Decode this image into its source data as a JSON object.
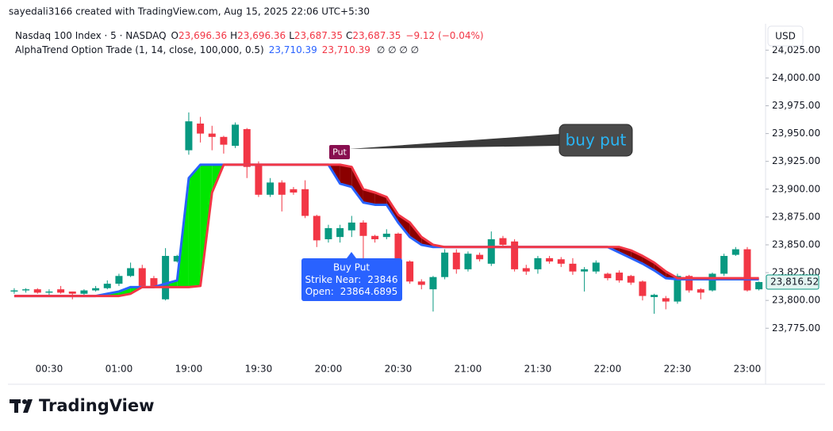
{
  "header": "sayedali3166 created with TradingView.com, Aug 15, 2025 22:06 UTC+5:30",
  "brand": "TradingView",
  "currency": "USD",
  "legend": {
    "symbol": "Nasdaq 100 Index · 5 · NASDAQ",
    "ohlc": [
      {
        "key": "O",
        "value": {
          "value": 23696.36,
          "label": "23,696.36"
        }
      },
      {
        "key": "H",
        "value": {
          "value": 23696.36,
          "label": "23,696.36"
        }
      },
      {
        "key": "L",
        "value": {
          "value": 23687.35,
          "label": "23,687.35"
        }
      },
      {
        "key": "C",
        "value": {
          "value": 23687.35,
          "label": "23,687.35"
        }
      }
    ],
    "change": {
      "value": -9.12,
      "label": "−9.12 (−0.04%)"
    },
    "indicator": "AlphaTrend Option Trade (1, 14, close, 100,000, 0.5)",
    "indicator_values": [
      {
        "value": 23710.39,
        "label": "23,710.39",
        "color": "#2962ff"
      },
      {
        "value": 23710.39,
        "label": "23,710.39",
        "color": "#f23645"
      }
    ],
    "indicator_empty": "∅ ∅ ∅ ∅"
  },
  "annotations": {
    "put_marker": "Put",
    "callout": "buy put",
    "signal": {
      "title": "Buy Put",
      "strike": {
        "label": "Strike Near:",
        "value": 23846
      },
      "open": {
        "label": "Open:",
        "value": 23864.6895
      }
    }
  },
  "chart_data": {
    "type": "candlestick",
    "categories": [
      null,
      null,
      null,
      "00:30",
      null,
      null,
      null,
      null,
      null,
      "01:00",
      null,
      null,
      null,
      null,
      null,
      "19:00",
      null,
      null,
      null,
      null,
      null,
      "19:30",
      null,
      null,
      null,
      null,
      null,
      "20:00",
      null,
      null,
      null,
      null,
      null,
      "20:30",
      null,
      null,
      null,
      null,
      null,
      "21:00",
      null,
      null,
      null,
      null,
      null,
      "21:30",
      null,
      null,
      null,
      null,
      null,
      "22:00",
      null,
      null,
      null,
      null,
      null,
      "22:30",
      null,
      null,
      null,
      null,
      null,
      "23:00",
      null
    ],
    "open": [
      23808,
      23809,
      23810,
      23807,
      23810,
      23808,
      23806,
      23809,
      23811,
      23815,
      23822,
      23829,
      23820,
      23801,
      23835,
      23935,
      23959,
      23950,
      23947,
      23939,
      23954,
      23922,
      23895,
      23906,
      23900,
      23900,
      23876,
      23855,
      23857,
      23863,
      23870,
      23858,
      23857,
      23860,
      23835,
      23817,
      23810,
      23821,
      23843,
      23828,
      23841,
      23833,
      23856,
      23853,
      23829,
      23828,
      23838,
      23837,
      23833,
      23826,
      23826,
      23824,
      23825,
      23822,
      23817,
      23803,
      23802,
      23799,
      23822,
      23810,
      23809,
      23824,
      23841,
      23846,
      23810
    ],
    "high": [
      23811,
      23811,
      23811,
      23810,
      23813,
      23808,
      23810,
      23813,
      23818,
      23824,
      23834,
      23832,
      23822,
      23847,
      23841,
      23969,
      23965,
      23957,
      23948,
      23960,
      23955,
      23925,
      23910,
      23908,
      23902,
      23908,
      23877,
      23868,
      23868,
      23876,
      23872,
      23859,
      23864,
      23861,
      23836,
      23819,
      23822,
      23846,
      23846,
      23844,
      23843,
      23862,
      23858,
      23855,
      23832,
      23840,
      23840,
      23839,
      23838,
      23830,
      23836,
      23825,
      23827,
      23823,
      23818,
      23806,
      23804,
      23824,
      23823,
      23811,
      23825,
      23842,
      23848,
      23848,
      23817
    ],
    "low": [
      23806,
      23807,
      23806,
      23805,
      23806,
      23801,
      23805,
      23808,
      23810,
      23813,
      23821,
      23812,
      23811,
      23800,
      23834,
      23931,
      23942,
      23935,
      23932,
      23937,
      23910,
      23893,
      23893,
      23880,
      23895,
      23874,
      23848,
      23852,
      23852,
      23857,
      23830,
      23852,
      23855,
      23833,
      23815,
      23810,
      23790,
      23819,
      23824,
      23826,
      23835,
      23831,
      23849,
      23826,
      23823,
      23824,
      23833,
      23830,
      23823,
      23808,
      23824,
      23818,
      23816,
      23814,
      23800,
      23788,
      23792,
      23797,
      23807,
      23801,
      23808,
      23822,
      23840,
      23808,
      23809
    ],
    "close": [
      23809,
      23810,
      23807,
      23808,
      23807,
      23806,
      23809,
      23811,
      23815,
      23822,
      23829,
      23813,
      23813,
      23840,
      23840,
      23961,
      23950,
      23947,
      23940,
      23958,
      23920,
      23895,
      23906,
      23895,
      23897,
      23876,
      23854,
      23865,
      23865,
      23870,
      23858,
      23855,
      23860,
      23835,
      23817,
      23814,
      23821,
      23843,
      23828,
      23842,
      23837,
      23855,
      23850,
      23828,
      23826,
      23838,
      23835,
      23833,
      23826,
      23828,
      23834,
      23820,
      23818,
      23816,
      23804,
      23805,
      23799,
      23822,
      23809,
      23807,
      23824,
      23840,
      23846,
      23809,
      23816.52
    ],
    "up_color": "#089981",
    "down_color": "#f23645",
    "series": [
      {
        "color": "#2962ff",
        "values": [
          23804,
          23804,
          23804,
          23804,
          23804,
          23804,
          23804,
          23804,
          23806,
          23808,
          23812,
          23812,
          23812,
          23815,
          23818,
          23910,
          23922,
          23922,
          23922,
          23922,
          23922,
          23922,
          23922,
          23922,
          23922,
          23922,
          23922,
          23922,
          23905,
          23902,
          23888,
          23886,
          23886,
          23870,
          23857,
          23850,
          23848,
          23848,
          23848,
          23848,
          23848,
          23848,
          23848,
          23848,
          23848,
          23848,
          23848,
          23848,
          23848,
          23848,
          23848,
          23848,
          23843,
          23838,
          23833,
          23827,
          23820,
          23819,
          23819,
          23819,
          23819,
          23819,
          23819,
          23819,
          23819
        ]
      },
      {
        "color": "#f23645",
        "values": [
          23804,
          23804,
          23804,
          23804,
          23804,
          23804,
          23804,
          23804,
          23804,
          23804,
          23806,
          23812,
          23812,
          23812,
          23812,
          23812,
          23813,
          23897,
          23922,
          23922,
          23922,
          23922,
          23922,
          23922,
          23922,
          23922,
          23922,
          23922,
          23922,
          23920,
          23900,
          23897,
          23893,
          23877,
          23870,
          23857,
          23850,
          23848,
          23848,
          23848,
          23848,
          23848,
          23848,
          23848,
          23848,
          23848,
          23848,
          23848,
          23848,
          23848,
          23848,
          23848,
          23848,
          23845,
          23840,
          23834,
          23826,
          23820,
          23820,
          23820,
          23820,
          23820,
          23820,
          23820,
          23820
        ]
      }
    ],
    "fill_up": "#00e600",
    "fill_down": "#8b0000",
    "last_price": {
      "value": 23816.52,
      "label": "23,816.52"
    },
    "ylim": [
      23746,
      24048
    ],
    "yticks": [
      {
        "value": 23775,
        "label": "23,775.00"
      },
      {
        "value": 23800,
        "label": "23,800.00"
      },
      {
        "value": 23825,
        "label": "23,825.00"
      },
      {
        "value": 23850,
        "label": "23,850.00"
      },
      {
        "value": 23875,
        "label": "23,875.00"
      },
      {
        "value": 23900,
        "label": "23,900.00"
      },
      {
        "value": 23925,
        "label": "23,925.00"
      },
      {
        "value": 23950,
        "label": "23,950.00"
      },
      {
        "value": 23975,
        "label": "23,975.00"
      },
      {
        "value": 24000,
        "label": "24,000.00"
      },
      {
        "value": 24025,
        "label": "24,025.00"
      }
    ],
    "grid": false
  }
}
